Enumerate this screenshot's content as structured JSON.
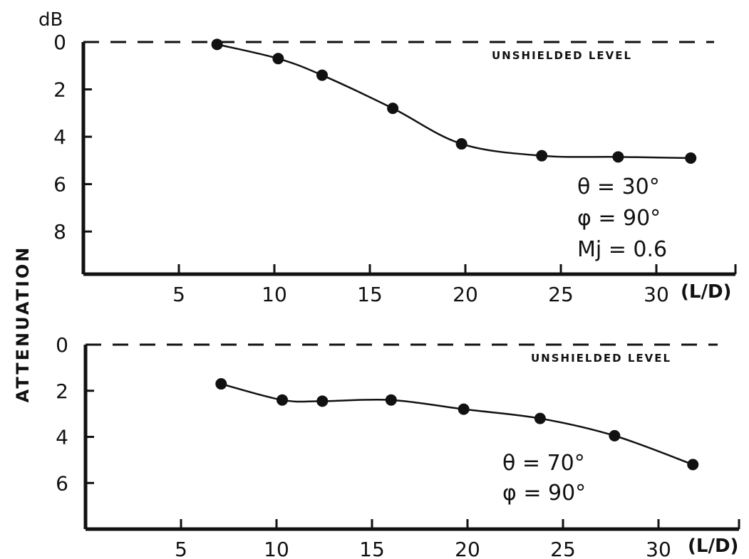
{
  "figure": {
    "ylabel": "ATTENUATION",
    "y_unit": "dB"
  },
  "chart_data": [
    {
      "type": "line",
      "x_axis_label": "(L/D)",
      "x_ticks": [
        5,
        10,
        15,
        20,
        25,
        30
      ],
      "y_ticks": [
        0,
        2,
        4,
        6,
        8
      ],
      "ylim": [
        9.8,
        0
      ],
      "xlim": [
        0,
        35
      ],
      "y_inverted": true,
      "reference_line": {
        "y": 0,
        "label": "UNSHIELDED LEVEL",
        "style": "dashed"
      },
      "params": [
        "θ = 30°",
        "φ = 90°",
        "Mj = 0.6"
      ],
      "series": [
        {
          "x": [
            7.0,
            10.2,
            12.5,
            16.2,
            19.8,
            24.0,
            28.0,
            31.8
          ],
          "y": [
            0.1,
            0.7,
            1.4,
            2.8,
            4.3,
            4.8,
            4.85,
            4.9
          ]
        }
      ]
    },
    {
      "type": "line",
      "x_axis_label": "(L/D)",
      "x_ticks": [
        5,
        10,
        15,
        20,
        25,
        30
      ],
      "y_ticks": [
        0,
        2,
        4,
        6
      ],
      "ylim": [
        8,
        0
      ],
      "xlim": [
        0,
        35
      ],
      "y_inverted": true,
      "reference_line": {
        "y": 0,
        "label": "UNSHIELDED LEVEL",
        "style": "dashed"
      },
      "params": [
        "θ = 70°",
        "φ = 90°"
      ],
      "series": [
        {
          "x": [
            7.1,
            10.3,
            12.4,
            16.0,
            19.8,
            23.8,
            27.7,
            31.8
          ],
          "y": [
            1.7,
            2.4,
            2.45,
            2.4,
            2.8,
            3.2,
            3.95,
            5.2
          ]
        }
      ]
    }
  ]
}
